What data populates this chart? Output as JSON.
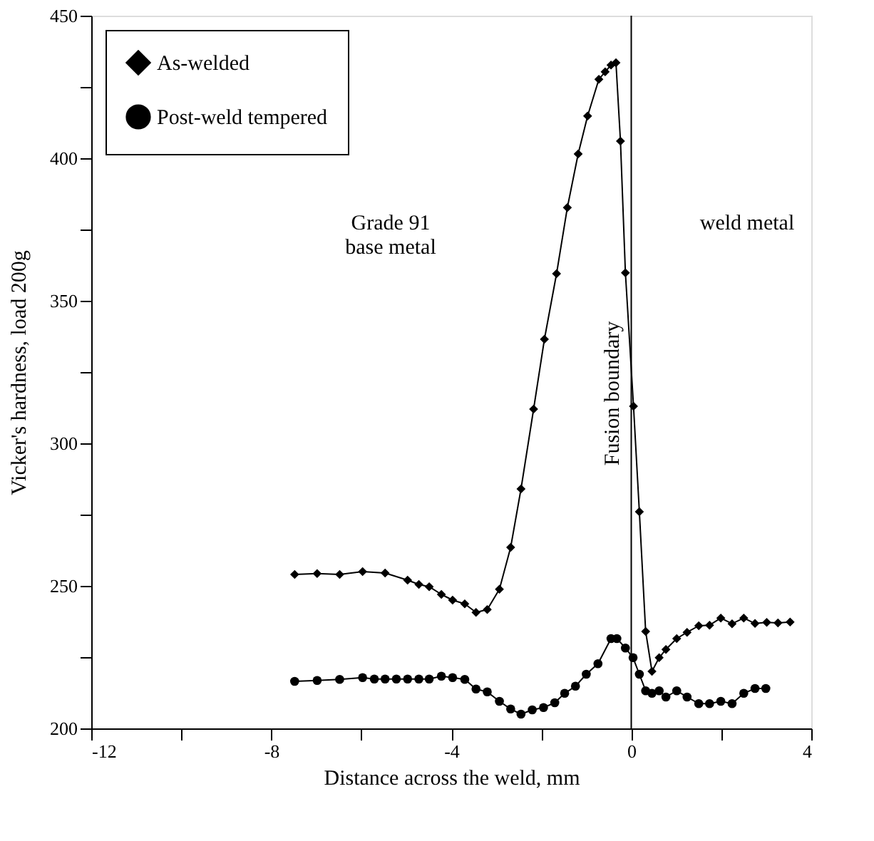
{
  "chart_data": {
    "type": "line",
    "xlabel": "Distance across the weld, mm",
    "ylabel": "Vicker's hardness, load 200g",
    "xlim": [
      -12,
      4
    ],
    "ylim": [
      200,
      450
    ],
    "xticks": [
      -12,
      {
        "value": -10,
        "label": null
      },
      -8,
      {
        "value": -6,
        "label": null
      },
      -4,
      {
        "value": -2,
        "label": null
      },
      0,
      {
        "value": 2,
        "label": null
      },
      4
    ],
    "yticks": [
      200,
      {
        "value": 225,
        "label": null
      },
      250,
      {
        "value": 275,
        "label": null
      },
      300,
      {
        "value": 325,
        "label": null
      },
      350,
      {
        "value": 375,
        "label": null
      },
      400,
      {
        "value": 425,
        "label": null
      },
      450
    ],
    "grid": false,
    "legend": "top left",
    "line_style": "solid",
    "series": [
      {
        "name": "As-welded",
        "color": "#000000",
        "marker": "diamond",
        "x": [
          -7.48,
          -6.98,
          -6.48,
          -5.97,
          -5.47,
          -4.97,
          -4.72,
          -4.49,
          -4.22,
          -3.97,
          -3.7,
          -3.45,
          -3.2,
          -2.93,
          -2.68,
          -2.45,
          -2.17,
          -1.93,
          -1.66,
          -1.42,
          -1.18,
          -0.97,
          -0.72,
          -0.58,
          -0.45,
          -0.34,
          -0.24,
          -0.13,
          0.05,
          0.18,
          0.32,
          0.46,
          0.62,
          0.77,
          1.01,
          1.24,
          1.5,
          1.74,
          1.99,
          2.24,
          2.5,
          2.75,
          3.01,
          3.26,
          3.53
        ],
        "values": [
          254,
          254.3,
          254,
          255,
          254.5,
          252,
          250.5,
          249.7,
          247,
          245,
          243.7,
          240.7,
          241.7,
          248.8,
          263.5,
          284,
          312,
          336.5,
          359.5,
          382.7,
          401.5,
          414.8,
          427.7,
          430.3,
          432.7,
          433.5,
          406,
          359.8,
          313,
          276,
          234,
          220,
          224.8,
          227.7,
          231.5,
          233.7,
          236,
          236.2,
          238.7,
          236.7,
          238.7,
          236.8,
          237.2,
          237,
          237.3
        ]
      },
      {
        "name": "Post-weld tempered",
        "color": "#000000",
        "marker": "circle",
        "x": [
          -7.48,
          -6.98,
          -6.48,
          -5.97,
          -5.71,
          -5.47,
          -5.22,
          -4.97,
          -4.72,
          -4.49,
          -4.22,
          -3.97,
          -3.7,
          -3.45,
          -3.2,
          -2.93,
          -2.68,
          -2.45,
          -2.2,
          -1.95,
          -1.7,
          -1.48,
          -1.24,
          -1.0,
          -0.74,
          -0.45,
          -0.32,
          -0.13,
          0.04,
          0.18,
          0.32,
          0.46,
          0.62,
          0.77,
          1.01,
          1.24,
          1.5,
          1.74,
          1.99,
          2.24,
          2.5,
          2.75,
          2.99
        ],
        "values": [
          216.5,
          216.8,
          217.2,
          217.8,
          217.3,
          217.3,
          217.3,
          217.3,
          217.3,
          217.3,
          218.3,
          217.8,
          217.2,
          213.8,
          212.8,
          209.5,
          206.8,
          205,
          206.5,
          207.3,
          209,
          212.3,
          214.8,
          219,
          222.7,
          231.5,
          231.5,
          228.2,
          224.8,
          219,
          213.2,
          212.3,
          213.2,
          211,
          213.2,
          211,
          208.7,
          208.7,
          209.5,
          208.7,
          212.3,
          214,
          214
        ]
      }
    ],
    "ref_lines": [
      {
        "axis": "x",
        "value": 0,
        "label": "Fusion boundary",
        "color": "#000000",
        "line_style": "solid"
      }
    ],
    "annotations": [
      "Grade 91\nbase metal",
      "weld metal"
    ]
  }
}
